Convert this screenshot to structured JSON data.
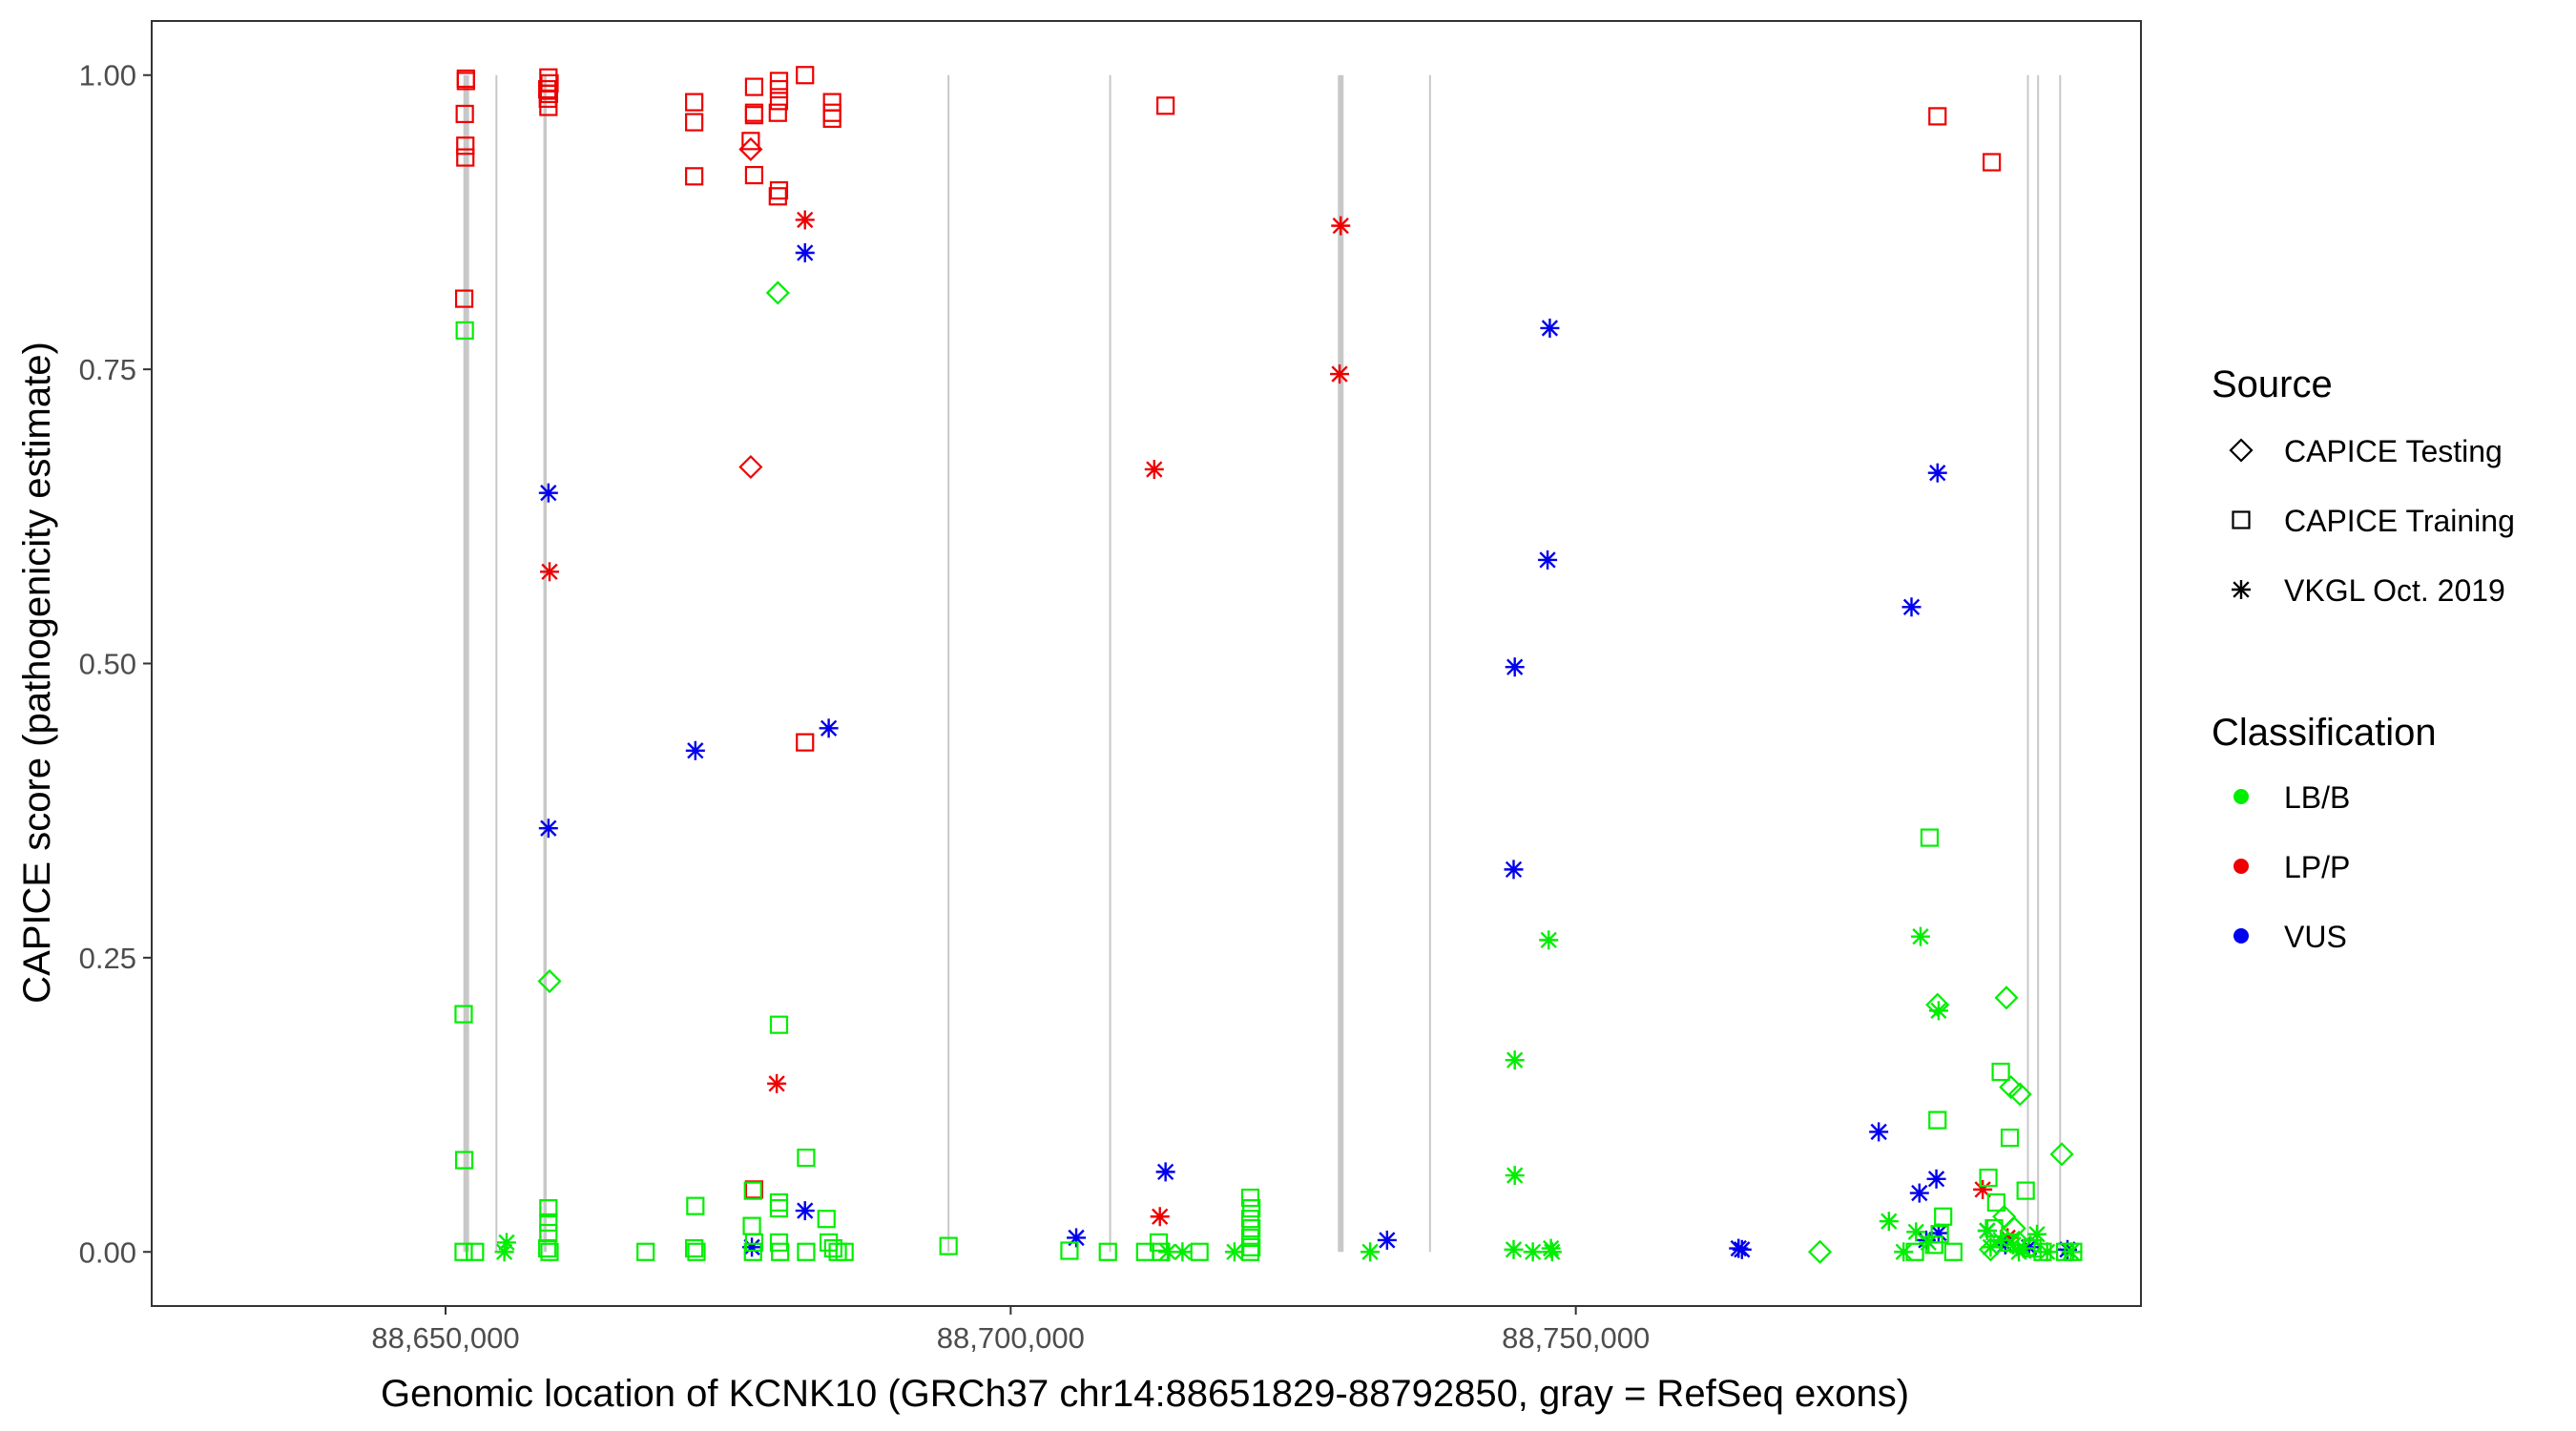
{
  "chart_data": {
    "type": "scatter",
    "xlabel": "Genomic location of KCNK10 (GRCh37 chr14:88651829-88792850, gray = RefSeq exons)",
    "ylabel": "CAPICE score (pathogenicity estimate)",
    "xlim": [
      88624000,
      88800000
    ],
    "ylim": [
      -0.046,
      1.046
    ],
    "x_ticks": [
      88650000,
      88700000,
      88750000
    ],
    "x_tick_labels": [
      "88,650,000",
      "88,700,000",
      "88,750,000"
    ],
    "y_ticks": [
      0,
      0.25,
      0.5,
      0.75,
      1.0
    ],
    "y_tick_labels": [
      "0.00",
      "0.25",
      "0.50",
      "0.75",
      "1.00"
    ],
    "exon_lines": [
      {
        "x": 88651829,
        "weight": "thick"
      },
      {
        "x": 88654500,
        "weight": "thin"
      },
      {
        "x": 88658800,
        "weight": "medium"
      },
      {
        "x": 88694500,
        "weight": "thin"
      },
      {
        "x": 88708800,
        "weight": "thin"
      },
      {
        "x": 88729200,
        "weight": "thick"
      },
      {
        "x": 88737100,
        "weight": "thin"
      },
      {
        "x": 88790000,
        "weight": "thin"
      },
      {
        "x": 88790900,
        "weight": "thin"
      },
      {
        "x": 88792850,
        "weight": "thin"
      }
    ],
    "legend": {
      "source_title": "Source",
      "source_items": [
        {
          "label": "CAPICE Testing",
          "shape": "diamond"
        },
        {
          "label": "CAPICE Training",
          "shape": "square"
        },
        {
          "label": "VKGL Oct. 2019",
          "shape": "asterisk"
        }
      ],
      "class_title": "Classification",
      "class_items": [
        {
          "label": "LB/B",
          "color": "#00ee00"
        },
        {
          "label": "LP/P",
          "color": "#ee0000"
        },
        {
          "label": "VUS",
          "color": "#0000ee"
        }
      ]
    },
    "colors": {
      "LB/B": "#00ee00",
      "LP/P": "#ee0000",
      "VUS": "#0000ee"
    },
    "series": [
      {
        "name": "LP/P CAPICE Training",
        "class": "LP/P",
        "shape": "square",
        "points": [
          [
            88651800,
            0.997
          ],
          [
            88651800,
            0.995
          ],
          [
            88651700,
            0.967
          ],
          [
            88651750,
            0.94
          ],
          [
            88651750,
            0.93
          ],
          [
            88651650,
            0.81
          ],
          [
            88659100,
            0.998
          ],
          [
            88659200,
            0.993
          ],
          [
            88659000,
            0.988
          ],
          [
            88659150,
            0.984
          ],
          [
            88659050,
            0.98
          ],
          [
            88659100,
            0.973
          ],
          [
            88672000,
            0.977
          ],
          [
            88672000,
            0.96
          ],
          [
            88672000,
            0.914
          ],
          [
            88677300,
            0.99
          ],
          [
            88677300,
            0.968
          ],
          [
            88677300,
            0.966
          ],
          [
            88677000,
            0.944
          ],
          [
            88677300,
            0.915
          ],
          [
            88679500,
            0.995
          ],
          [
            88679500,
            0.988
          ],
          [
            88679500,
            0.978
          ],
          [
            88679400,
            0.968
          ],
          [
            88679500,
            0.902
          ],
          [
            88679400,
            0.897
          ],
          [
            88681800,
            1.0
          ],
          [
            88681800,
            0.433
          ],
          [
            88684200,
            0.977
          ],
          [
            88684200,
            0.968
          ],
          [
            88684200,
            0.963
          ],
          [
            88677300,
            0.053
          ],
          [
            88713700,
            0.974
          ],
          [
            88782000,
            0.965
          ],
          [
            88786800,
            0.926
          ]
        ]
      },
      {
        "name": "LP/P CAPICE Testing",
        "class": "LP/P",
        "shape": "diamond",
        "points": [
          [
            88677000,
            0.937
          ],
          [
            88677000,
            0.667
          ]
        ]
      },
      {
        "name": "LP/P VKGL Oct. 2019",
        "class": "LP/P",
        "shape": "asterisk",
        "points": [
          [
            88681800,
            0.877
          ],
          [
            88659200,
            0.578
          ],
          [
            88679300,
            0.143
          ],
          [
            88712700,
            0.665
          ],
          [
            88713200,
            0.03
          ],
          [
            88729200,
            0.872
          ],
          [
            88729100,
            0.746
          ],
          [
            88786000,
            0.053
          ],
          [
            88788200,
            0.012
          ]
        ]
      },
      {
        "name": "VUS VKGL Oct. 2019",
        "class": "VUS",
        "shape": "asterisk",
        "points": [
          [
            88681800,
            0.849
          ],
          [
            88659100,
            0.645
          ],
          [
            88683900,
            0.445
          ],
          [
            88672100,
            0.426
          ],
          [
            88659100,
            0.36
          ],
          [
            88681800,
            0.035
          ],
          [
            88677100,
            0.004
          ],
          [
            88705800,
            0.012
          ],
          [
            88713700,
            0.068
          ],
          [
            88733300,
            0.01
          ],
          [
            88747700,
            0.785
          ],
          [
            88747500,
            0.588
          ],
          [
            88744600,
            0.497
          ],
          [
            88744500,
            0.325
          ],
          [
            88764400,
            0.003
          ],
          [
            88764700,
            0.002
          ],
          [
            88782000,
            0.662
          ],
          [
            88779700,
            0.548
          ],
          [
            88776800,
            0.102
          ],
          [
            88781900,
            0.062
          ],
          [
            88780400,
            0.05
          ],
          [
            88782100,
            0.016
          ],
          [
            88781000,
            0.01
          ],
          [
            88786400,
            0.018
          ],
          [
            88788000,
            0.006
          ],
          [
            88790100,
            0.004
          ],
          [
            88793500,
            0.002
          ]
        ]
      },
      {
        "name": "LB/B CAPICE Training",
        "class": "LB/B",
        "shape": "square",
        "points": [
          [
            88651700,
            0.783
          ],
          [
            88651600,
            0.202
          ],
          [
            88651650,
            0.078
          ],
          [
            88651600,
            0.0
          ],
          [
            88652600,
            0.0
          ],
          [
            88659100,
            0.037
          ],
          [
            88659100,
            0.025
          ],
          [
            88659100,
            0.016
          ],
          [
            88659000,
            0.003
          ],
          [
            88659200,
            0.0
          ],
          [
            88667700,
            0.0
          ],
          [
            88672100,
            0.039
          ],
          [
            88672000,
            0.003
          ],
          [
            88672200,
            0.0
          ],
          [
            88677200,
            0.052
          ],
          [
            88677100,
            0.022
          ],
          [
            88677300,
            0.008
          ],
          [
            88677200,
            0.0
          ],
          [
            88679500,
            0.193
          ],
          [
            88679500,
            0.042
          ],
          [
            88679500,
            0.037
          ],
          [
            88679500,
            0.008
          ],
          [
            88679600,
            0.0
          ],
          [
            88681900,
            0.08
          ],
          [
            88681900,
            0.0
          ],
          [
            88683700,
            0.028
          ],
          [
            88683900,
            0.008
          ],
          [
            88684300,
            0.003
          ],
          [
            88684700,
            0.0
          ],
          [
            88685300,
            0.0
          ],
          [
            88694500,
            0.005
          ],
          [
            88705200,
            0.001
          ],
          [
            88708600,
            0.0
          ],
          [
            88711900,
            0.0
          ],
          [
            88713100,
            0.008
          ],
          [
            88713300,
            0.0
          ],
          [
            88716700,
            0.0
          ],
          [
            88721200,
            0.046
          ],
          [
            88721300,
            0.037
          ],
          [
            88721200,
            0.028
          ],
          [
            88721300,
            0.02
          ],
          [
            88721200,
            0.012
          ],
          [
            88721300,
            0.004
          ],
          [
            88721200,
            0.0
          ],
          [
            88781300,
            0.352
          ],
          [
            88782000,
            0.112
          ],
          [
            88782500,
            0.03
          ],
          [
            88782200,
            0.015
          ],
          [
            88781700,
            0.006
          ],
          [
            88780000,
            0.0
          ],
          [
            88783400,
            0.0
          ],
          [
            88786500,
            0.063
          ],
          [
            88787200,
            0.042
          ],
          [
            88787600,
            0.153
          ],
          [
            88788400,
            0.097
          ],
          [
            88789800,
            0.052
          ],
          [
            88787000,
            0.02
          ],
          [
            88788400,
            0.008
          ],
          [
            88790400,
            0.003
          ],
          [
            88791300,
            0.0
          ],
          [
            88793300,
            0.0
          ],
          [
            88794000,
            0.0
          ]
        ]
      },
      {
        "name": "LB/B CAPICE Testing",
        "class": "LB/B",
        "shape": "diamond",
        "points": [
          [
            88679400,
            0.815
          ],
          [
            88659200,
            0.23
          ],
          [
            88771600,
            0.0
          ],
          [
            88782000,
            0.21
          ],
          [
            88788100,
            0.216
          ],
          [
            88788500,
            0.14
          ],
          [
            88789300,
            0.134
          ],
          [
            88793000,
            0.083
          ],
          [
            88787900,
            0.03
          ],
          [
            88788800,
            0.02
          ],
          [
            88789200,
            0.008
          ],
          [
            88790200,
            0.004
          ],
          [
            88786700,
            0.002
          ]
        ]
      },
      {
        "name": "LB/B VKGL Oct. 2019",
        "class": "LB/B",
        "shape": "asterisk",
        "points": [
          [
            88655400,
            0.008
          ],
          [
            88655200,
            0.0
          ],
          [
            88713900,
            0.0
          ],
          [
            88715200,
            0.0
          ],
          [
            88719800,
            0.0
          ],
          [
            88731800,
            0.0
          ],
          [
            88744600,
            0.163
          ],
          [
            88744600,
            0.065
          ],
          [
            88744500,
            0.002
          ],
          [
            88746200,
            0.0
          ],
          [
            88747600,
            0.265
          ],
          [
            88747800,
            0.003
          ],
          [
            88747900,
            0.0
          ],
          [
            88780500,
            0.268
          ],
          [
            88782100,
            0.205
          ],
          [
            88777700,
            0.026
          ],
          [
            88780100,
            0.017
          ],
          [
            88781200,
            0.008
          ],
          [
            88779000,
            0.0
          ],
          [
            88786400,
            0.018
          ],
          [
            88787600,
            0.01
          ],
          [
            88788700,
            0.006
          ],
          [
            88789600,
            0.003
          ],
          [
            88790800,
            0.015
          ],
          [
            88791700,
            0.0
          ],
          [
            88793800,
            0.0
          ],
          [
            88786700,
            0.004
          ],
          [
            88789200,
            0.0
          ]
        ]
      }
    ]
  }
}
